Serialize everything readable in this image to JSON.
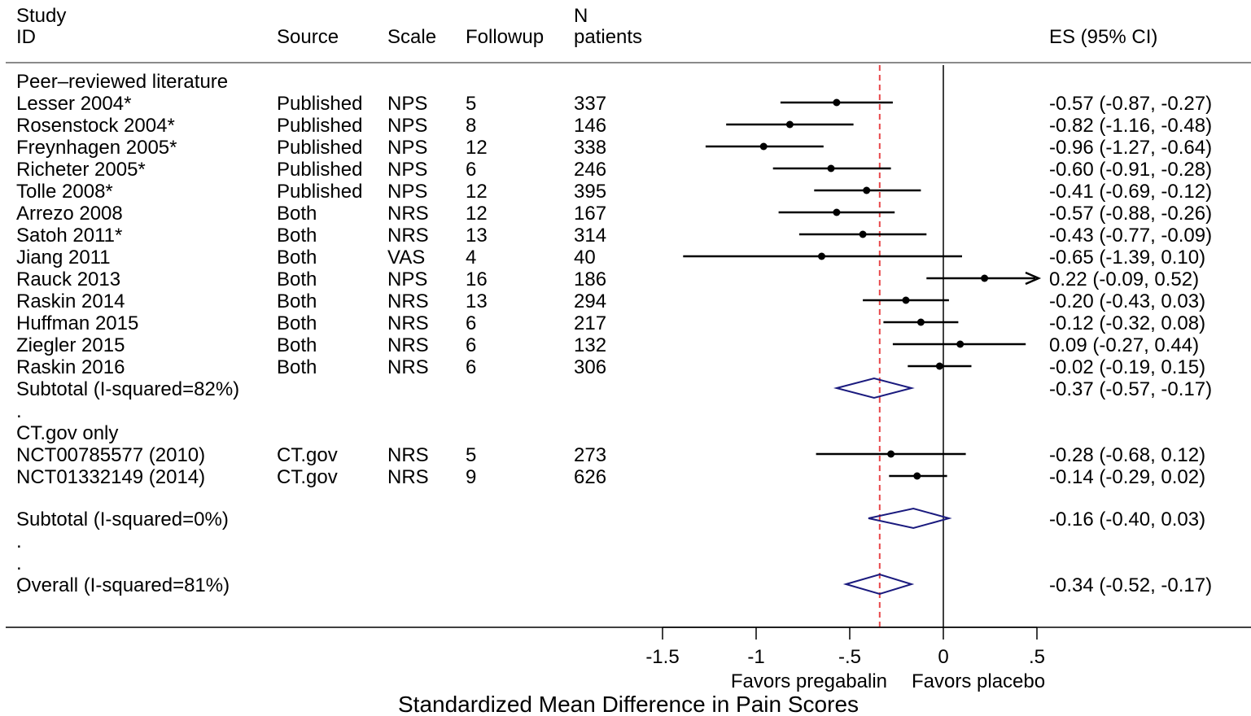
{
  "chart_data": {
    "type": "forest",
    "headers": {
      "study": [
        "Study",
        "ID"
      ],
      "source": "Source",
      "scale": "Scale",
      "followup": "Followup",
      "n": [
        "N",
        "patients"
      ],
      "es": "ES (95% CI)"
    },
    "rows": [
      {
        "kind": "group",
        "label": "Peer–reviewed literature"
      },
      {
        "kind": "study",
        "id": "Lesser 2004*",
        "source": "Published",
        "scale": "NPS",
        "followup": "5",
        "n": "337",
        "es": -0.57,
        "lo": -0.87,
        "hi": -0.27,
        "es_text": "-0.57 (-0.87, -0.27)"
      },
      {
        "kind": "study",
        "id": "Rosenstock 2004*",
        "source": "Published",
        "scale": "NPS",
        "followup": "8",
        "n": "146",
        "es": -0.82,
        "lo": -1.16,
        "hi": -0.48,
        "es_text": "-0.82 (-1.16, -0.48)"
      },
      {
        "kind": "study",
        "id": "Freynhagen 2005*",
        "source": "Published",
        "scale": "NPS",
        "followup": "12",
        "n": "338",
        "es": -0.96,
        "lo": -1.27,
        "hi": -0.64,
        "es_text": "-0.96 (-1.27, -0.64)"
      },
      {
        "kind": "study",
        "id": "Richeter 2005*",
        "source": "Published",
        "scale": "NPS",
        "followup": "6",
        "n": "246",
        "es": -0.6,
        "lo": -0.91,
        "hi": -0.28,
        "es_text": "-0.60 (-0.91, -0.28)"
      },
      {
        "kind": "study",
        "id": "Tolle 2008*",
        "source": "Published",
        "scale": "NPS",
        "followup": "12",
        "n": "395",
        "es": -0.41,
        "lo": -0.69,
        "hi": -0.12,
        "es_text": "-0.41 (-0.69, -0.12)"
      },
      {
        "kind": "study",
        "id": "Arrezo 2008",
        "source": "Both",
        "scale": "NRS",
        "followup": "12",
        "n": "167",
        "es": -0.57,
        "lo": -0.88,
        "hi": -0.26,
        "es_text": "-0.57 (-0.88, -0.26)"
      },
      {
        "kind": "study",
        "id": "Satoh 2011*",
        "source": "Both",
        "scale": "NRS",
        "followup": "13",
        "n": "314",
        "es": -0.43,
        "lo": -0.77,
        "hi": -0.09,
        "es_text": "-0.43 (-0.77, -0.09)"
      },
      {
        "kind": "study",
        "id": "Jiang 2011",
        "source": "Both",
        "scale": "VAS",
        "followup": "4",
        "n": "40",
        "es": -0.65,
        "lo": -1.39,
        "hi": 0.1,
        "es_text": "-0.65 (-1.39, 0.10)"
      },
      {
        "kind": "study",
        "id": "Rauck 2013",
        "source": "Both",
        "scale": "NPS",
        "followup": "16",
        "n": "186",
        "es": 0.22,
        "lo": -0.09,
        "hi": 0.52,
        "es_text": "0.22 (-0.09, 0.52)"
      },
      {
        "kind": "study",
        "id": "Raskin 2014",
        "source": "Both",
        "scale": "NRS",
        "followup": "13",
        "n": "294",
        "es": -0.2,
        "lo": -0.43,
        "hi": 0.03,
        "es_text": "-0.20 (-0.43, 0.03)"
      },
      {
        "kind": "study",
        "id": "Huffman 2015",
        "source": "Both",
        "scale": "NRS",
        "followup": "6",
        "n": "217",
        "es": -0.12,
        "lo": -0.32,
        "hi": 0.08,
        "es_text": "-0.12 (-0.32, 0.08)"
      },
      {
        "kind": "study",
        "id": "Ziegler 2015",
        "source": "Both",
        "scale": "NRS",
        "followup": "6",
        "n": "132",
        "es": 0.09,
        "lo": -0.27,
        "hi": 0.44,
        "es_text": "0.09 (-0.27, 0.44)"
      },
      {
        "kind": "study",
        "id": "Raskin 2016",
        "source": "Both",
        "scale": "NRS",
        "followup": "6",
        "n": "306",
        "es": -0.02,
        "lo": -0.19,
        "hi": 0.15,
        "es_text": "-0.02 (-0.19, 0.15)"
      },
      {
        "kind": "subtotal",
        "label": "Subtotal (I-squared=82%)",
        "es": -0.37,
        "lo": -0.57,
        "hi": -0.17,
        "es_text": "-0.37 (-0.57, -0.17)"
      },
      {
        "kind": "spacer",
        "label": "."
      },
      {
        "kind": "group",
        "label": "CT.gov only"
      },
      {
        "kind": "study",
        "id": "NCT00785577 (2010)",
        "source": "CT.gov",
        "scale": "NRS",
        "followup": "5",
        "n": "273",
        "es": -0.28,
        "lo": -0.68,
        "hi": 0.12,
        "es_text": "-0.28 (-0.68, 0.12)"
      },
      {
        "kind": "study",
        "id": "NCT01332149 (2014)",
        "source": "CT.gov",
        "scale": "NRS",
        "followup": "9",
        "n": "626",
        "es": -0.14,
        "lo": -0.29,
        "hi": 0.02,
        "es_text": "-0.14 (-0.29, 0.02)"
      },
      {
        "kind": "subtotal",
        "label": "Subtotal (I-squared=0%)",
        "es": -0.16,
        "lo": -0.4,
        "hi": 0.03,
        "es_text": "-0.16 (-0.40, 0.03)"
      },
      {
        "kind": "spacer",
        "label": "."
      },
      {
        "kind": "spacer",
        "label": "."
      },
      {
        "kind": "overall",
        "label": "Overall (I-squared=81%)",
        "es": -0.34,
        "lo": -0.52,
        "hi": -0.17,
        "es_text": "-0.34 (-0.52, -0.17)"
      },
      {
        "kind": "spacer",
        "label": "."
      }
    ],
    "x_ticks": [
      {
        "value": -1.5,
        "label": "-1.5"
      },
      {
        "value": -1,
        "label": "-1"
      },
      {
        "value": -0.5,
        "label": "-.5"
      },
      {
        "value": 0,
        "label": "0"
      },
      {
        "value": 0.5,
        "label": ".5"
      }
    ],
    "xlim": [
      -1.5,
      0.5
    ],
    "null_line": 0,
    "overall_line": -0.34,
    "favors_left": "Favors pregabalin",
    "favors_right": "Favors placebo",
    "xlabel": "Standardized Mean Difference in Pain Scores",
    "colors": {
      "text": "#000000",
      "diamond": "#1a1a7e",
      "overall_line": "#e8474a"
    }
  }
}
